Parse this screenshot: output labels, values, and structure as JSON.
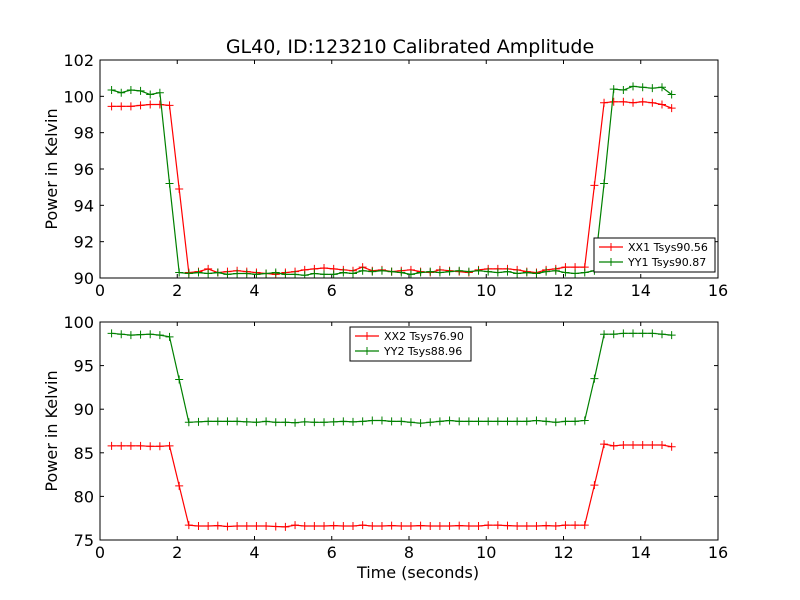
{
  "figure": {
    "title": "GL40, ID:123210 Calibrated Amplitude"
  },
  "chart_data": [
    {
      "type": "line",
      "title": "GL40, ID:123210 Calibrated Amplitude",
      "xlabel": "",
      "ylabel": "Power in Kelvin",
      "xlim": [
        0,
        16
      ],
      "ylim": [
        90,
        102
      ],
      "xticks": [
        "0",
        "2",
        "4",
        "6",
        "8",
        "10",
        "12",
        "14",
        "16"
      ],
      "yticks": [
        "90",
        "92",
        "94",
        "96",
        "98",
        "100",
        "102"
      ],
      "grid": false,
      "legend_position": "lower-right",
      "x": [
        0.3,
        0.55,
        0.8,
        1.05,
        1.3,
        1.55,
        1.8,
        2.05,
        2.3,
        2.55,
        2.8,
        3.05,
        3.3,
        3.55,
        3.8,
        4.05,
        4.3,
        4.55,
        4.8,
        5.05,
        5.3,
        5.55,
        5.8,
        6.05,
        6.3,
        6.55,
        6.8,
        7.05,
        7.3,
        7.55,
        7.8,
        8.05,
        8.3,
        8.55,
        8.8,
        9.05,
        9.3,
        9.55,
        9.8,
        10.05,
        10.3,
        10.55,
        10.8,
        11.05,
        11.3,
        11.55,
        11.8,
        12.05,
        12.3,
        12.55,
        12.8,
        13.05,
        13.3,
        13.55,
        13.8,
        14.05,
        14.3,
        14.55,
        14.8
      ],
      "series": [
        {
          "name": "XX1 Tsys90.56",
          "color": "#ff0000",
          "values": [
            99.45,
            99.45,
            99.45,
            99.5,
            99.55,
            99.55,
            99.5,
            94.9,
            90.3,
            90.35,
            90.5,
            90.3,
            90.35,
            90.4,
            90.35,
            90.3,
            90.25,
            90.2,
            90.3,
            90.35,
            90.45,
            90.5,
            90.55,
            90.5,
            90.45,
            90.4,
            90.6,
            90.4,
            90.45,
            90.35,
            90.4,
            90.45,
            90.35,
            90.3,
            90.45,
            90.4,
            90.35,
            90.3,
            90.45,
            90.5,
            90.5,
            90.5,
            90.45,
            90.35,
            90.3,
            90.45,
            90.5,
            90.6,
            90.6,
            90.6,
            95.1,
            99.65,
            99.7,
            99.7,
            99.65,
            99.7,
            99.65,
            99.55,
            99.35
          ]
        },
        {
          "name": "YY1 Tsys90.87",
          "color": "#008000",
          "values": [
            100.35,
            100.2,
            100.35,
            100.3,
            100.1,
            100.2,
            95.2,
            90.3,
            90.25,
            90.3,
            90.25,
            90.3,
            90.2,
            90.25,
            90.25,
            90.2,
            90.25,
            90.3,
            90.2,
            90.2,
            90.15,
            90.25,
            90.2,
            90.2,
            90.3,
            90.25,
            90.4,
            90.35,
            90.4,
            90.35,
            90.3,
            90.2,
            90.3,
            90.35,
            90.3,
            90.35,
            90.4,
            90.35,
            90.4,
            90.35,
            90.3,
            90.35,
            90.25,
            90.3,
            90.25,
            90.35,
            90.4,
            90.3,
            90.25,
            90.3,
            90.4,
            95.2,
            100.4,
            100.35,
            100.55,
            100.5,
            100.45,
            100.5,
            100.1
          ]
        }
      ]
    },
    {
      "type": "line",
      "title": "",
      "xlabel": "Time (seconds)",
      "ylabel": "Power in Kelvin",
      "xlim": [
        0,
        16
      ],
      "ylim": [
        75,
        100
      ],
      "xticks": [
        "0",
        "2",
        "4",
        "6",
        "8",
        "10",
        "12",
        "14",
        "16"
      ],
      "yticks": [
        "75",
        "80",
        "85",
        "90",
        "95",
        "100"
      ],
      "grid": false,
      "legend_position": "top-center",
      "x": [
        0.3,
        0.55,
        0.8,
        1.05,
        1.3,
        1.55,
        1.8,
        2.05,
        2.3,
        2.55,
        2.8,
        3.05,
        3.3,
        3.55,
        3.8,
        4.05,
        4.3,
        4.55,
        4.8,
        5.05,
        5.3,
        5.55,
        5.8,
        6.05,
        6.3,
        6.55,
        6.8,
        7.05,
        7.3,
        7.55,
        7.8,
        8.05,
        8.3,
        8.55,
        8.8,
        9.05,
        9.3,
        9.55,
        9.8,
        10.05,
        10.3,
        10.55,
        10.8,
        11.05,
        11.3,
        11.55,
        11.8,
        12.05,
        12.3,
        12.55,
        12.8,
        13.05,
        13.3,
        13.55,
        13.8,
        14.05,
        14.3,
        14.55,
        14.8
      ],
      "series": [
        {
          "name": "XX2 Tsys76.90",
          "color": "#ff0000",
          "values": [
            85.8,
            85.8,
            85.8,
            85.8,
            85.75,
            85.75,
            85.8,
            81.2,
            76.7,
            76.6,
            76.6,
            76.65,
            76.55,
            76.6,
            76.6,
            76.6,
            76.6,
            76.55,
            76.5,
            76.7,
            76.6,
            76.6,
            76.6,
            76.65,
            76.6,
            76.6,
            76.7,
            76.6,
            76.6,
            76.65,
            76.6,
            76.6,
            76.65,
            76.6,
            76.6,
            76.6,
            76.65,
            76.6,
            76.6,
            76.7,
            76.7,
            76.65,
            76.6,
            76.6,
            76.6,
            76.65,
            76.6,
            76.7,
            76.7,
            76.7,
            81.3,
            86.0,
            85.8,
            85.9,
            85.9,
            85.9,
            85.9,
            85.9,
            85.7
          ]
        },
        {
          "name": "YY2 Tsys88.96",
          "color": "#008000",
          "values": [
            98.7,
            98.6,
            98.5,
            98.55,
            98.6,
            98.5,
            98.3,
            93.4,
            88.5,
            88.55,
            88.6,
            88.6,
            88.6,
            88.6,
            88.55,
            88.5,
            88.6,
            88.5,
            88.5,
            88.45,
            88.55,
            88.5,
            88.5,
            88.55,
            88.6,
            88.55,
            88.6,
            88.7,
            88.7,
            88.6,
            88.6,
            88.5,
            88.4,
            88.5,
            88.6,
            88.7,
            88.6,
            88.6,
            88.6,
            88.6,
            88.6,
            88.6,
            88.6,
            88.6,
            88.7,
            88.6,
            88.5,
            88.6,
            88.6,
            88.7,
            93.5,
            98.6,
            98.6,
            98.7,
            98.7,
            98.7,
            98.7,
            98.6,
            98.5
          ]
        }
      ]
    }
  ]
}
